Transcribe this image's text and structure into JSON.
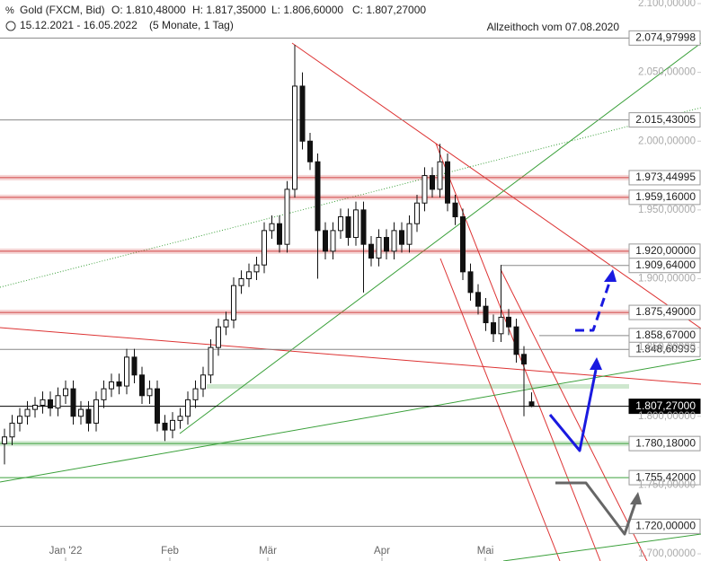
{
  "chart_data": {
    "type": "candlestick",
    "title": "Gold (FXCM, Bid)",
    "ohlc_text": [
      "O: 1.810,48000",
      "H: 1.817,35000",
      "L: 1.806,60000",
      "C: 1.807,27000"
    ],
    "period": "15.12.2021 - 16.05.2022",
    "period_note": "(5 Monate, 1 Tag)",
    "annotation": "Allzeithoch vom 07.08.2020",
    "x_labels": [
      "Jan '22",
      "Feb",
      "Mär",
      "Apr",
      "Mai"
    ],
    "open": [
      1780,
      1785,
      1795,
      1800,
      1805,
      1808,
      1812,
      1806,
      1815,
      1820,
      1800,
      1805,
      1795,
      1812,
      1820,
      1825,
      1822,
      1843,
      1830,
      1815,
      1820,
      1795,
      1790,
      1797,
      1800,
      1812,
      1820,
      1830,
      1850,
      1865,
      1870,
      1895,
      1900,
      1905,
      1910,
      1935,
      1940,
      1925,
      1965,
      2040,
      2000,
      1985,
      1935,
      1920,
      1935,
      1945,
      1930,
      1950,
      1925,
      1915,
      1930,
      1920,
      1935,
      1925,
      1940,
      1955,
      1975,
      1965,
      1985,
      1955,
      1945,
      1905,
      1890,
      1880,
      1868,
      1860,
      1872,
      1865,
      1845,
      1810.48
    ],
    "high": [
      1791,
      1801,
      1806,
      1811,
      1814,
      1818,
      1818,
      1821,
      1826,
      1826,
      1811,
      1811,
      1818,
      1826,
      1831,
      1831,
      1849,
      1849,
      1836,
      1826,
      1826,
      1801,
      1803,
      1806,
      1818,
      1826,
      1836,
      1856,
      1871,
      1876,
      1901,
      1906,
      1911,
      1916,
      1941,
      1946,
      1946,
      1971,
      2070,
      2050,
      2006,
      1991,
      1941,
      1941,
      1951,
      1951,
      1956,
      1956,
      1931,
      1936,
      1936,
      1941,
      1941,
      1946,
      1961,
      1981,
      1981,
      1998,
      1991,
      1961,
      1951,
      1911,
      1896,
      1886,
      1874,
      1910,
      1878,
      1871,
      1851,
      1817.35
    ],
    "low": [
      1765,
      1779,
      1789,
      1794,
      1799,
      1802,
      1800,
      1800,
      1809,
      1794,
      1794,
      1789,
      1789,
      1806,
      1814,
      1816,
      1816,
      1824,
      1809,
      1809,
      1789,
      1782,
      1784,
      1791,
      1794,
      1806,
      1814,
      1824,
      1844,
      1859,
      1864,
      1889,
      1894,
      1899,
      1904,
      1929,
      1919,
      1919,
      1959,
      1994,
      1979,
      1900,
      1914,
      1914,
      1929,
      1924,
      1924,
      1890,
      1909,
      1909,
      1914,
      1914,
      1919,
      1919,
      1934,
      1949,
      1959,
      1959,
      1949,
      1939,
      1899,
      1884,
      1874,
      1862,
      1854,
      1854,
      1859,
      1839,
      1800,
      1806.6
    ],
    "close": [
      1785,
      1795,
      1800,
      1805,
      1808,
      1812,
      1806,
      1815,
      1820,
      1800,
      1805,
      1795,
      1812,
      1820,
      1825,
      1822,
      1843,
      1830,
      1815,
      1820,
      1795,
      1790,
      1797,
      1800,
      1812,
      1820,
      1830,
      1850,
      1865,
      1870,
      1895,
      1900,
      1905,
      1910,
      1935,
      1940,
      1925,
      1965,
      2040,
      2000,
      1985,
      1935,
      1920,
      1935,
      1945,
      1930,
      1950,
      1925,
      1915,
      1930,
      1920,
      1935,
      1925,
      1940,
      1955,
      1975,
      1965,
      1985,
      1955,
      1945,
      1905,
      1890,
      1880,
      1868,
      1860,
      1872,
      1865,
      1845,
      1838,
      1807.27
    ],
    "ylim": [
      1694.8,
      2102.6
    ],
    "yticks": [
      {
        "value": 1700,
        "label": "1.700,00000"
      },
      {
        "value": 1750,
        "label": "1.750,00000"
      },
      {
        "value": 1800,
        "label": "1.800,00000"
      },
      {
        "value": 1850,
        "label": "1.850,00000"
      },
      {
        "value": 1900,
        "label": "1.900,00000"
      },
      {
        "value": 1950,
        "label": "1.950,00000"
      },
      {
        "value": 2000,
        "label": "2.000,00000"
      },
      {
        "value": 2050,
        "label": "2.050,00000"
      },
      {
        "value": 2100,
        "label": "2.100,00000"
      }
    ],
    "levels": [
      {
        "value": 2074.97998,
        "label": "2.074,97998",
        "color": "#888888",
        "band": false
      },
      {
        "value": 2015.43005,
        "label": "2.015,43005",
        "color": "#888888",
        "band": false
      },
      {
        "value": 1973.44995,
        "label": "1.973,44995",
        "color": "#d04040",
        "band": true
      },
      {
        "value": 1959.16,
        "label": "1.959,16000",
        "color": "#d04040",
        "band": true
      },
      {
        "value": 1920,
        "label": "1.920,00000",
        "color": "#d04040",
        "band": true
      },
      {
        "value": 1909.64,
        "label": "1.909,64000",
        "color": "#888888",
        "band": false
      },
      {
        "value": 1875.49,
        "label": "1.875,49000",
        "color": "#d04040",
        "band": true
      },
      {
        "value": 1858.67,
        "label": "1.858,67000",
        "color": "#888888",
        "band": false
      },
      {
        "value": 1848.60999,
        "label": "1.848,60999",
        "color": "#888888",
        "band": false
      },
      {
        "value": 1807.27,
        "label": "1.807,27000",
        "color": "#000000",
        "band": false
      },
      {
        "value": 1780.18,
        "label": "1.780,18000",
        "color": "#3aa03a",
        "band": true
      },
      {
        "value": 1755.42,
        "label": "1.755,42000",
        "color": "#3aa03a",
        "band": false
      },
      {
        "value": 1720,
        "label": "1.720,00000",
        "color": "#888888",
        "band": false
      }
    ]
  }
}
